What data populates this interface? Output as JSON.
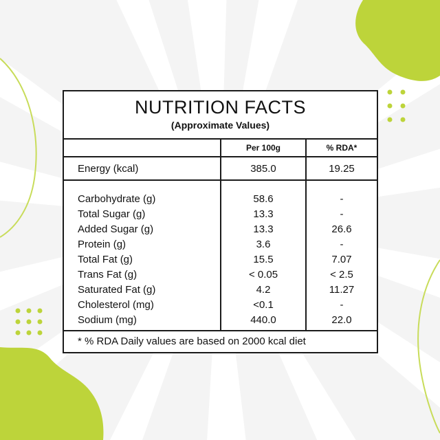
{
  "colors": {
    "accent": "#bdd43a",
    "background": "#f4f4f4",
    "ink": "#111111"
  },
  "header": {
    "title": "NUTRITION FACTS",
    "subtitle": "(Approximate Values)"
  },
  "table": {
    "columns": [
      "",
      "Per 100g",
      "% RDA*"
    ],
    "energy": {
      "label": "Energy (kcal)",
      "per100g": "385.0",
      "rda": "19.25"
    },
    "rows": [
      {
        "label": "Carbohydrate (g)",
        "per100g": "58.6",
        "rda": "-"
      },
      {
        "label": "Total Sugar (g)",
        "per100g": "13.3",
        "rda": "-"
      },
      {
        "label": "Added Sugar (g)",
        "per100g": "13.3",
        "rda": "26.6"
      },
      {
        "label": "Protein (g)",
        "per100g": "3.6",
        "rda": "-"
      },
      {
        "label": "Total Fat (g)",
        "per100g": "15.5",
        "rda": "7.07"
      },
      {
        "label": "Trans Fat (g)",
        "per100g": "< 0.05",
        "rda": "< 2.5"
      },
      {
        "label": "Saturated Fat (g)",
        "per100g": "4.2",
        "rda": "11.27"
      },
      {
        "label": "Cholesterol (mg)",
        "per100g": "<0.1",
        "rda": "-"
      },
      {
        "label": "Sodium (mg)",
        "per100g": "440.0",
        "rda": "22.0"
      }
    ]
  },
  "footnote": "* % RDA Daily values are based on 2000 kcal diet"
}
